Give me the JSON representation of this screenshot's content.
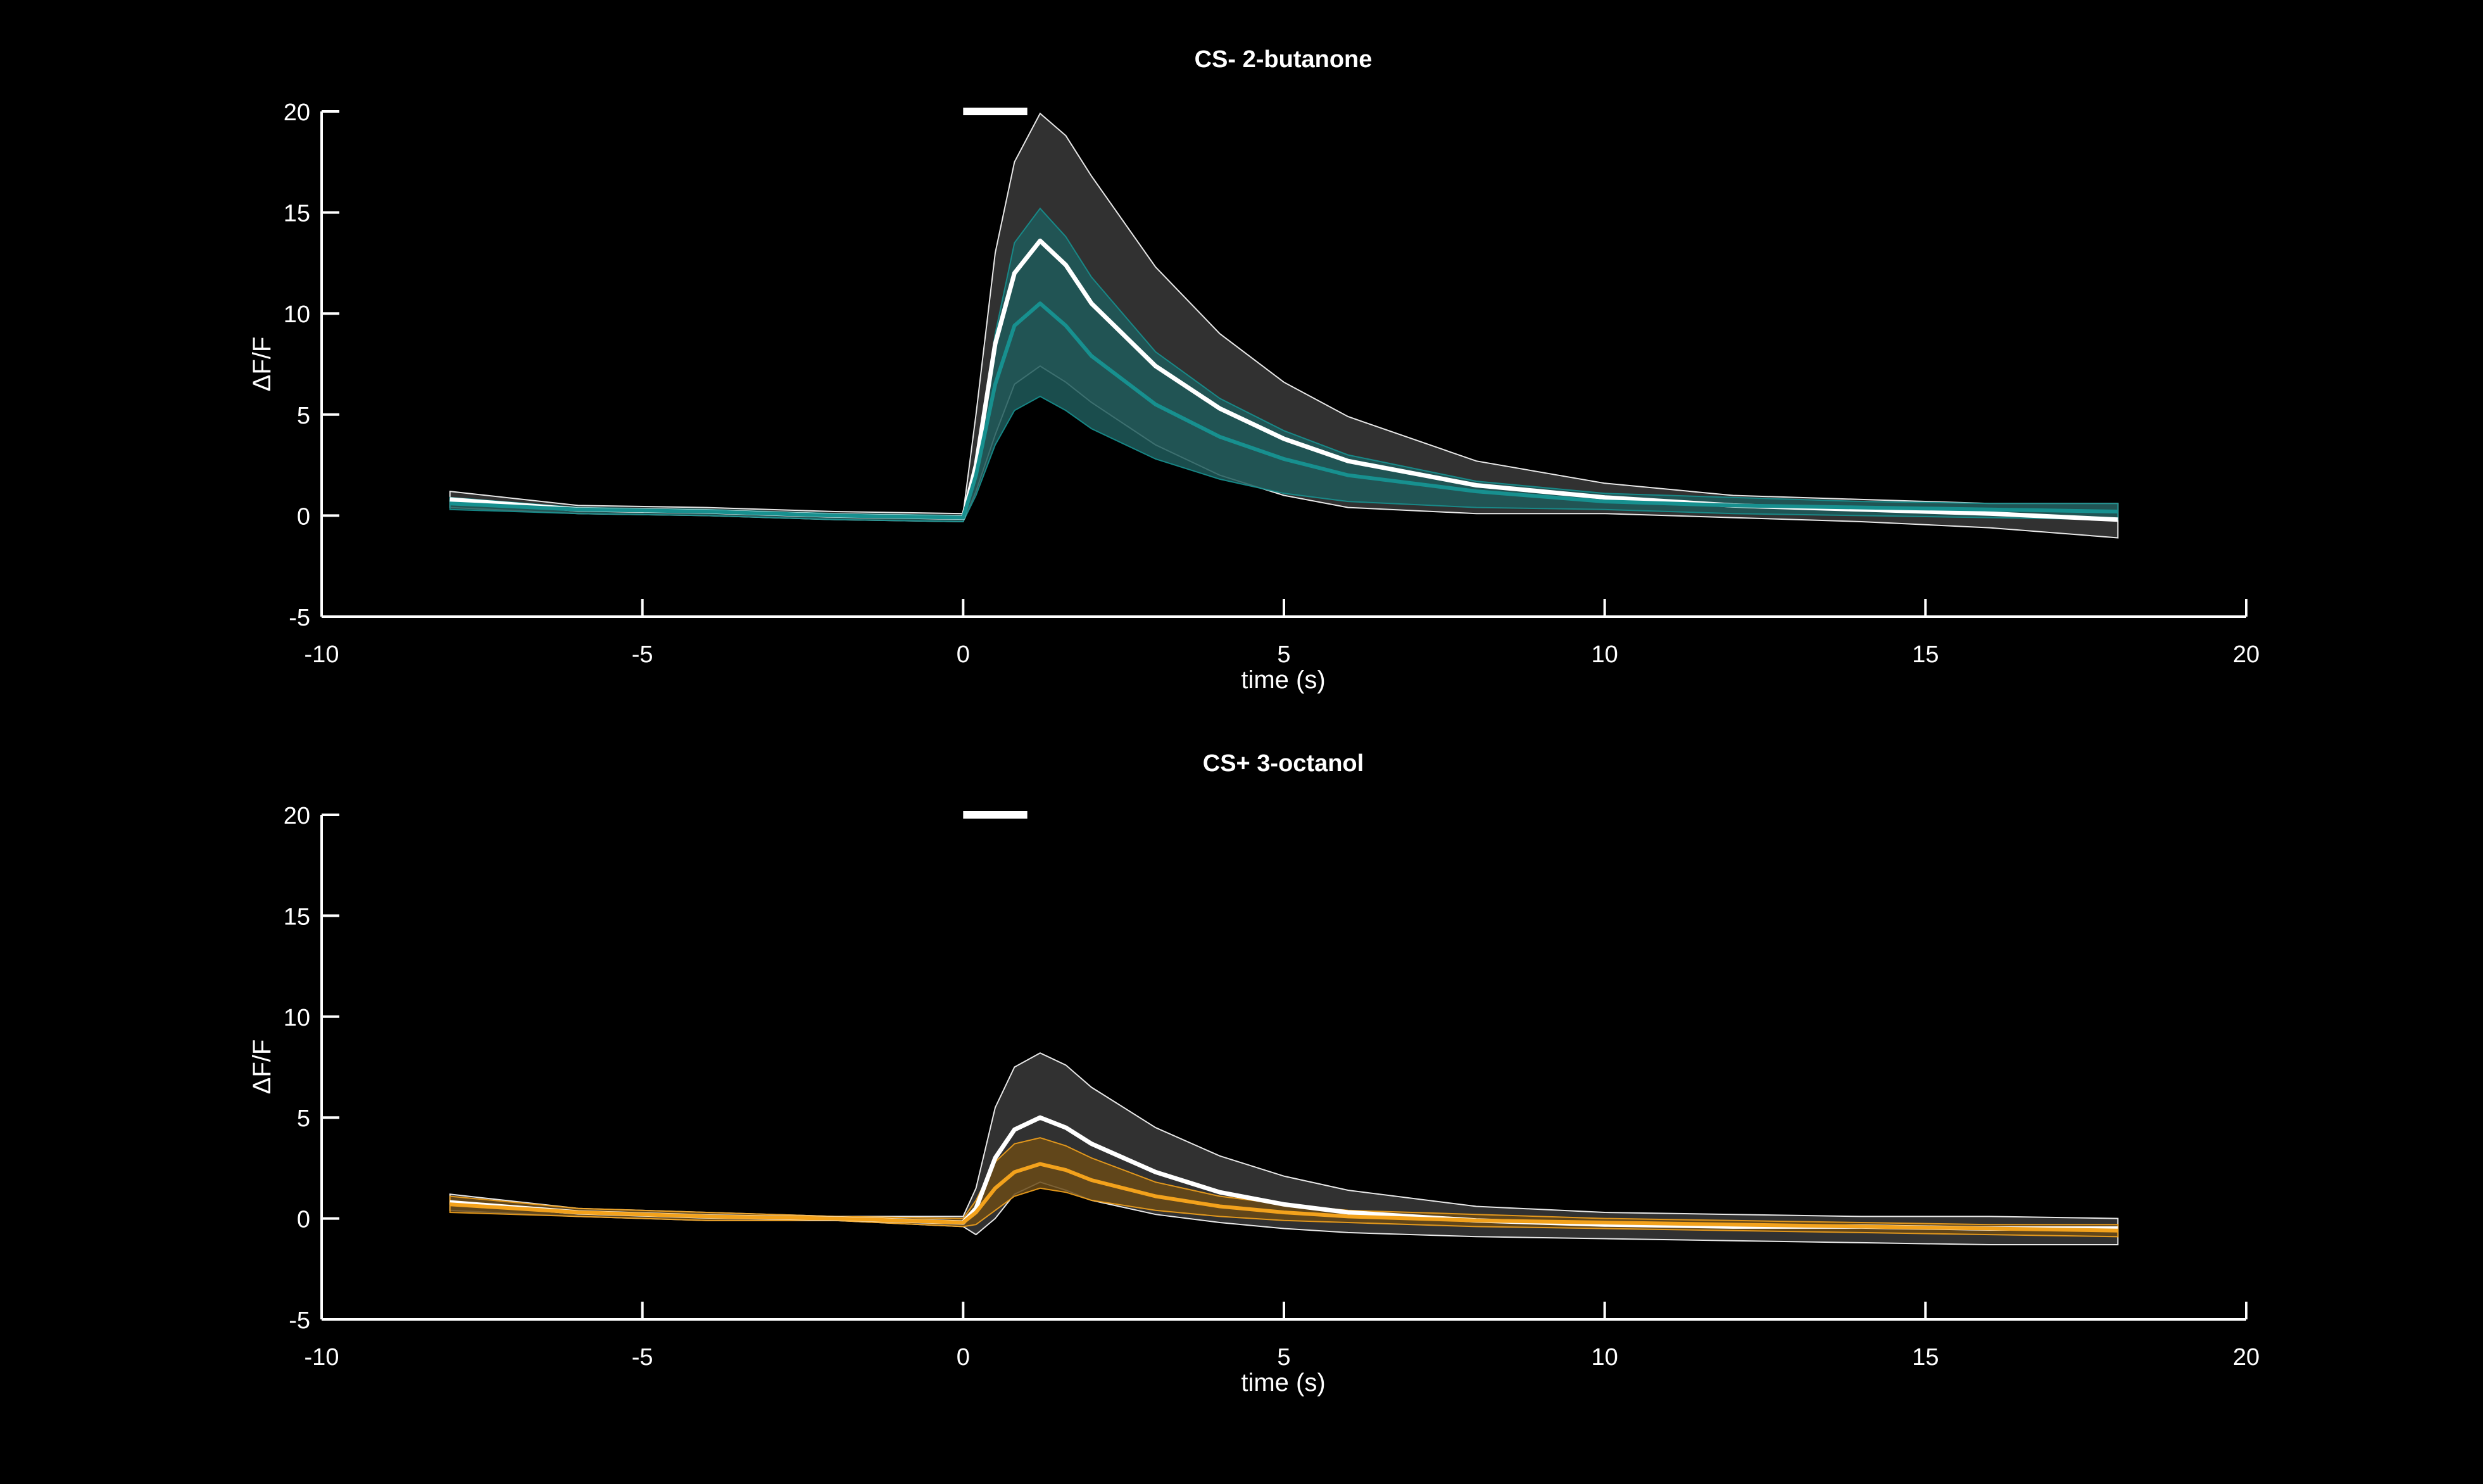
{
  "colors": {
    "background": "#000000",
    "axis": "#ffffff",
    "mean_line": "#ffffff",
    "mean_band": "#3a3a3a",
    "teal": "#17908f",
    "teal_band": "#1f5a5a",
    "orange": "#f3a21c",
    "orange_band": "#6a4a16",
    "odor_bar": "#ffffff"
  },
  "chart_data": [
    {
      "type": "line",
      "title": "CS-  2-butanone",
      "xlabel": "time (s)",
      "ylabel": "ΔF/F",
      "xlim": [
        -10,
        20
      ],
      "ylim": [
        -5,
        20
      ],
      "xticks": [
        -10,
        -5,
        0,
        5,
        10,
        15,
        20
      ],
      "yticks": [
        -5,
        0,
        5,
        10,
        15,
        20
      ],
      "odor_window": [
        0,
        1
      ],
      "grid": false,
      "series": [
        {
          "color_key": "mean_line",
          "band_color_key": "mean_band",
          "x": [
            -8,
            -6,
            -4,
            -2,
            0,
            0.2,
            0.5,
            0.8,
            1.2,
            1.6,
            2,
            3,
            4,
            5,
            6,
            8,
            10,
            12,
            14,
            16,
            18
          ],
          "y": [
            0.8,
            0.3,
            0.2,
            0.0,
            -0.1,
            2.5,
            8.5,
            12.0,
            13.6,
            12.4,
            10.5,
            7.4,
            5.3,
            3.8,
            2.7,
            1.5,
            0.9,
            0.5,
            0.3,
            0.1,
            -0.2
          ],
          "upper": [
            1.2,
            0.5,
            0.4,
            0.2,
            0.1,
            5.0,
            13.0,
            17.5,
            19.9,
            18.8,
            16.8,
            12.3,
            9.0,
            6.6,
            4.9,
            2.7,
            1.6,
            1.0,
            0.8,
            0.6,
            0.6
          ],
          "lower": [
            0.4,
            0.1,
            0.0,
            -0.2,
            -0.3,
            1.2,
            4.0,
            6.5,
            7.4,
            6.6,
            5.6,
            3.5,
            2.0,
            1.0,
            0.4,
            0.1,
            0.1,
            -0.1,
            -0.3,
            -0.6,
            -1.1
          ]
        },
        {
          "color_key": "teal",
          "band_color_key": "teal_band",
          "x": [
            -8,
            -6,
            -4,
            -2,
            0,
            0.2,
            0.5,
            0.8,
            1.2,
            1.6,
            2,
            3,
            4,
            5,
            6,
            8,
            10,
            12,
            14,
            16,
            18
          ],
          "y": [
            0.6,
            0.3,
            0.2,
            0.0,
            -0.1,
            2.0,
            6.5,
            9.4,
            10.5,
            9.4,
            7.9,
            5.5,
            3.9,
            2.8,
            2.0,
            1.2,
            0.7,
            0.5,
            0.4,
            0.3,
            0.2
          ],
          "upper": [
            0.9,
            0.4,
            0.3,
            0.1,
            0.0,
            2.8,
            9.0,
            13.5,
            15.2,
            13.8,
            11.8,
            8.1,
            5.8,
            4.2,
            3.0,
            1.7,
            1.1,
            0.9,
            0.7,
            0.6,
            0.6
          ],
          "lower": [
            0.3,
            0.1,
            0.0,
            -0.2,
            -0.3,
            1.0,
            3.5,
            5.2,
            5.9,
            5.2,
            4.3,
            2.8,
            1.8,
            1.1,
            0.7,
            0.4,
            0.3,
            0.1,
            0.0,
            -0.1,
            -0.2
          ]
        }
      ]
    },
    {
      "type": "line",
      "title": "CS+  3-octanol",
      "xlabel": "time (s)",
      "ylabel": "ΔF/F",
      "xlim": [
        -10,
        20
      ],
      "ylim": [
        -5,
        20
      ],
      "xticks": [
        -10,
        -5,
        0,
        5,
        10,
        15,
        20
      ],
      "yticks": [
        -5,
        0,
        5,
        10,
        15,
        20
      ],
      "odor_window": [
        0,
        1
      ],
      "grid": false,
      "series": [
        {
          "color_key": "mean_line",
          "band_color_key": "mean_band",
          "x": [
            -8,
            -6,
            -4,
            -2,
            0,
            0.2,
            0.5,
            0.8,
            1.2,
            1.6,
            2,
            3,
            4,
            5,
            6,
            8,
            10,
            12,
            14,
            16,
            18
          ],
          "y": [
            0.8,
            0.3,
            0.1,
            0.0,
            -0.2,
            0.5,
            3.0,
            4.4,
            5.0,
            4.5,
            3.7,
            2.3,
            1.3,
            0.7,
            0.3,
            -0.1,
            -0.3,
            -0.4,
            -0.4,
            -0.5,
            -0.5
          ],
          "upper": [
            1.2,
            0.5,
            0.3,
            0.1,
            0.1,
            1.5,
            5.5,
            7.5,
            8.2,
            7.6,
            6.5,
            4.5,
            3.1,
            2.1,
            1.4,
            0.6,
            0.3,
            0.2,
            0.1,
            0.1,
            0.0
          ],
          "lower": [
            0.4,
            0.1,
            -0.1,
            -0.1,
            -0.4,
            -0.8,
            0.0,
            1.2,
            1.8,
            1.4,
            0.9,
            0.2,
            -0.2,
            -0.5,
            -0.7,
            -0.9,
            -1.0,
            -1.1,
            -1.2,
            -1.3,
            -1.3
          ]
        },
        {
          "color_key": "orange",
          "band_color_key": "orange_band",
          "x": [
            -8,
            -6,
            -4,
            -2,
            0,
            0.2,
            0.5,
            0.8,
            1.2,
            1.6,
            2,
            3,
            4,
            5,
            6,
            8,
            10,
            12,
            14,
            16,
            18
          ],
          "y": [
            0.7,
            0.3,
            0.1,
            0.0,
            -0.2,
            0.3,
            1.5,
            2.3,
            2.7,
            2.4,
            1.9,
            1.1,
            0.6,
            0.3,
            0.1,
            -0.1,
            -0.2,
            -0.3,
            -0.4,
            -0.5,
            -0.6
          ],
          "upper": [
            1.1,
            0.5,
            0.3,
            0.1,
            0.0,
            0.9,
            2.8,
            3.7,
            4.0,
            3.6,
            3.0,
            1.8,
            1.1,
            0.7,
            0.4,
            0.2,
            0.0,
            -0.1,
            -0.2,
            -0.3,
            -0.3
          ],
          "lower": [
            0.3,
            0.1,
            -0.1,
            -0.1,
            -0.4,
            -0.3,
            0.4,
            1.1,
            1.5,
            1.3,
            0.9,
            0.4,
            0.1,
            -0.1,
            -0.2,
            -0.4,
            -0.5,
            -0.6,
            -0.7,
            -0.8,
            -0.9
          ]
        }
      ]
    }
  ]
}
